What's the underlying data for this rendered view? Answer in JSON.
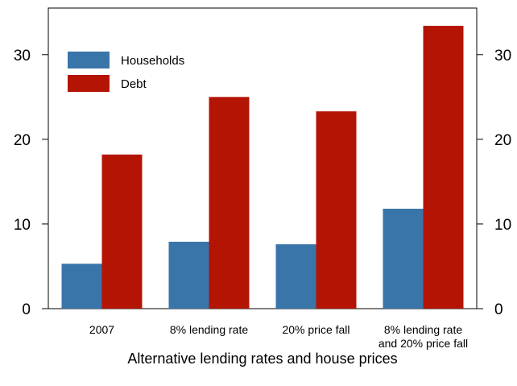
{
  "chart_data": {
    "type": "bar",
    "categories": [
      [
        "2007"
      ],
      [
        "8% lending rate"
      ],
      [
        "20% price fall"
      ],
      [
        "8% lending rate",
        "and 20% price fall"
      ]
    ],
    "series": [
      {
        "name": "Households",
        "color": "#3a75aa",
        "values": [
          5.3,
          7.9,
          7.6,
          11.8
        ]
      },
      {
        "name": "Debt",
        "color": "#b41404",
        "values": [
          18.2,
          25.0,
          23.3,
          33.4
        ]
      }
    ],
    "title": "",
    "xlabel": "Alternative lending rates and house prices",
    "ylabel": "",
    "ylim": [
      0,
      35.5
    ],
    "yticks": [
      0,
      10,
      20,
      30
    ],
    "right_axis": true,
    "grid": false,
    "legend": "top-left"
  }
}
